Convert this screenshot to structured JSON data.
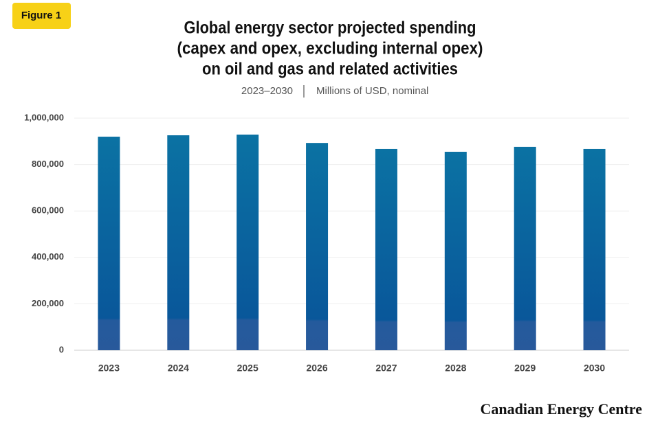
{
  "badge": "Figure 1",
  "source": "Canadian Energy Centre",
  "chart_data": {
    "type": "bar",
    "title": [
      "Global energy sector projected spending",
      "(capex and opex, excluding internal opex)",
      "on oil and gas and related activities"
    ],
    "subtitle": [
      "2023–2030",
      "Millions of USD, nominal"
    ],
    "categories": [
      "2023",
      "2024",
      "2025",
      "2026",
      "2027",
      "2028",
      "2029",
      "2030"
    ],
    "values": [
      920000,
      926000,
      929000,
      893000,
      867000,
      855000,
      876000,
      867000
    ],
    "color": "#0b6b9f",
    "ylim": [
      0,
      1000000
    ],
    "yticks": [
      0,
      {
        "value": 200000,
        "label": "200,000"
      },
      {
        "value": 400000,
        "label": "400,000"
      },
      {
        "value": 600000,
        "label": "600,000"
      },
      {
        "value": 800000,
        "label": "800,000"
      },
      {
        "value": 1000000,
        "label": "1,000,000"
      }
    ],
    "grid": true
  }
}
